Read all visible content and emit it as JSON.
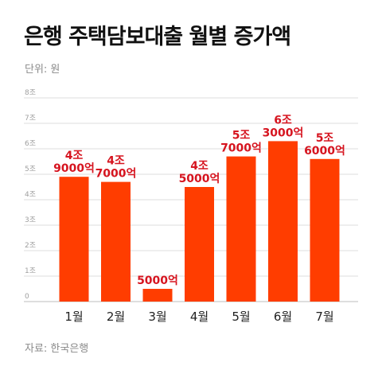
{
  "title": "은행 주택담보대출 월별 증가액",
  "unit_label": "단위: 원",
  "source_label": "자료: 한국은행",
  "colors": {
    "bar": "#ff3d00",
    "label": "#d6141f",
    "grid": "#dcdcdc"
  },
  "chart_data": {
    "type": "bar",
    "title": "은행 주택담보대출 월별 증가액",
    "xlabel": "",
    "ylabel": "",
    "ylim": [
      0,
      8
    ],
    "grid": true,
    "categories": [
      "1월",
      "2월",
      "3월",
      "4월",
      "5월",
      "6월",
      "7월"
    ],
    "values": [
      4.9,
      4.7,
      0.5,
      4.5,
      5.7,
      6.3,
      5.6
    ],
    "value_labels": [
      [
        "4조",
        "9000억"
      ],
      [
        "4조",
        "7000억"
      ],
      [
        "5000억"
      ],
      [
        "4조",
        "5000억"
      ],
      [
        "5조",
        "7000억"
      ],
      [
        "6조",
        "3000억"
      ],
      [
        "5조",
        "6000억"
      ]
    ],
    "y_ticks": [
      {
        "value": 0,
        "label": "0"
      },
      {
        "value": 1,
        "label": "1조"
      },
      {
        "value": 2,
        "label": "2조"
      },
      {
        "value": 3,
        "label": "3조"
      },
      {
        "value": 4,
        "label": "4조"
      },
      {
        "value": 5,
        "label": "5조"
      },
      {
        "value": 6,
        "label": "6조"
      },
      {
        "value": 7,
        "label": "7조"
      },
      {
        "value": 8,
        "label": "8조"
      }
    ]
  }
}
